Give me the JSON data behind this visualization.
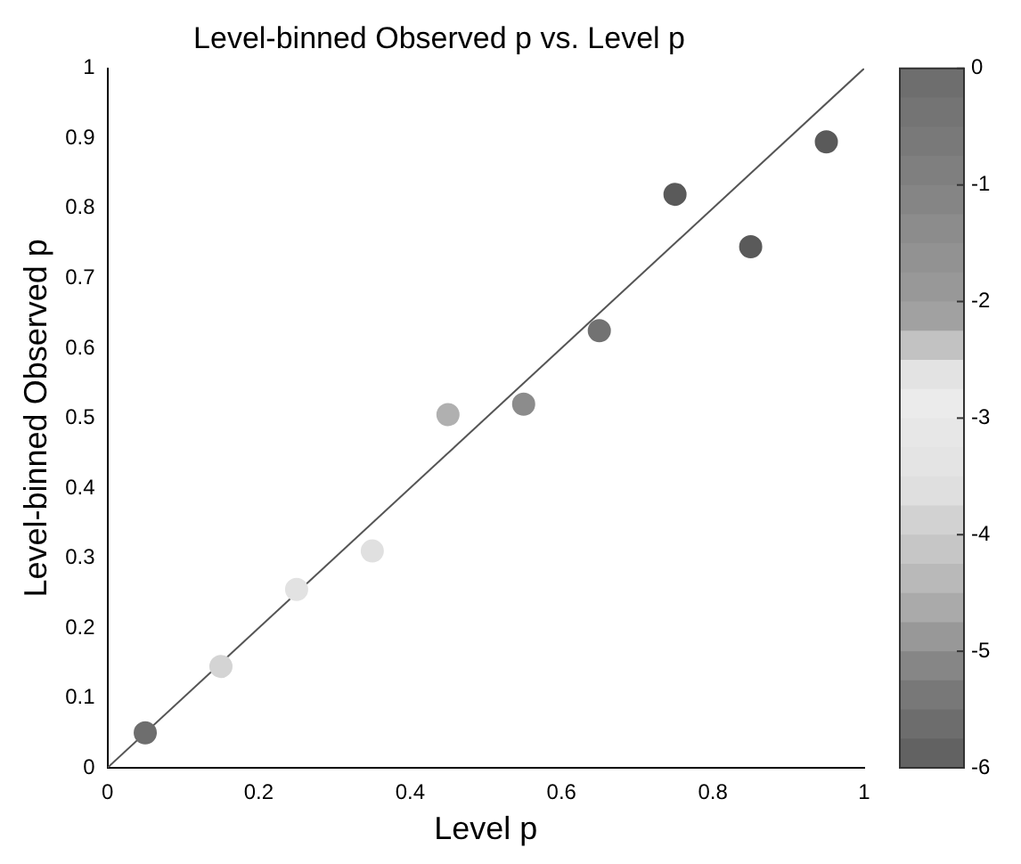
{
  "chart_data": {
    "type": "scatter",
    "title": "Level-binned Observed p vs. Level p",
    "xlabel": "Level p",
    "ylabel": "Level-binned Observed p",
    "x": [
      0.05,
      0.15,
      0.25,
      0.35,
      0.45,
      0.55,
      0.65,
      0.75,
      0.85,
      0.95
    ],
    "series": [
      {
        "values": [
          0.05,
          0.145,
          0.255,
          0.31,
          0.505,
          0.52,
          0.625,
          0.82,
          0.745,
          0.895
        ],
        "colors": [
          "#6e6e6e",
          "#d4d4d4",
          "#e2e2e2",
          "#e0e0e0",
          "#b0b0b0",
          "#8c8c8c",
          "#727272",
          "#5a5a5a",
          "#5a5a5a",
          "#5a5a5a"
        ],
        "marker": "circle"
      },
      {
        "type": "line",
        "x": [
          0,
          1
        ],
        "values": [
          0,
          1
        ],
        "color": "#555555",
        "marker": "none"
      }
    ],
    "xlim": [
      0,
      1
    ],
    "xticks": [
      0,
      0.2,
      0.4,
      0.6,
      0.8,
      1
    ],
    "ylim": [
      0,
      1
    ],
    "yticks": [
      0,
      0.1,
      0.2,
      0.3,
      0.4,
      0.5,
      0.6,
      0.7,
      0.8,
      0.9,
      1
    ],
    "clim": [
      -6,
      0
    ],
    "cticks": [
      0,
      -1,
      -2,
      -3,
      -4,
      -5,
      -6
    ],
    "grid": false,
    "legend": false
  }
}
